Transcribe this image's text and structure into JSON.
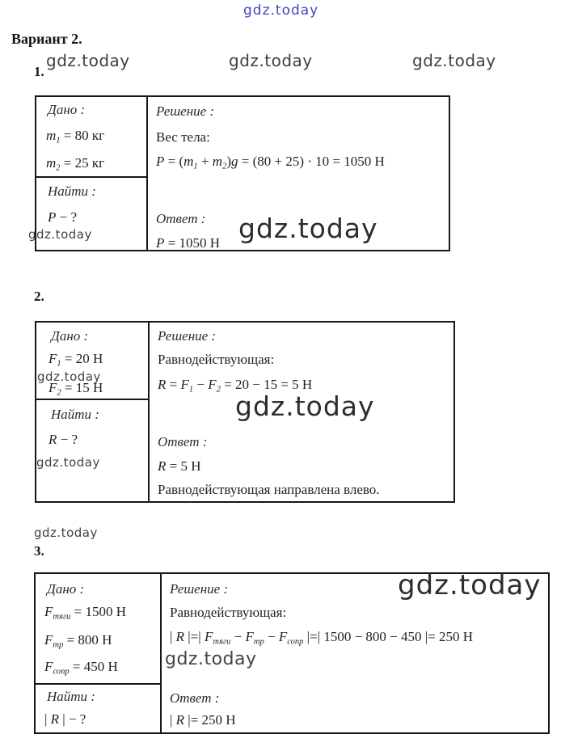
{
  "watermark": {
    "text": "gdz.today"
  },
  "header": {
    "variant": "Вариант 2."
  },
  "labels": {
    "given": "Дано :",
    "find": "Найти :",
    "solution": "Решение :",
    "answer": "Ответ :"
  },
  "problems": [
    {
      "number": "1.",
      "given": [
        [
          {
            "t": "m",
            "k": "v"
          },
          {
            "t": "1",
            "k": "s"
          },
          {
            "t": " = 80 кг",
            "k": "p"
          }
        ],
        [
          {
            "t": "m",
            "k": "v"
          },
          {
            "t": "2",
            "k": "s"
          },
          {
            "t": " = 25 кг",
            "k": "p"
          }
        ]
      ],
      "find": [
        [
          {
            "t": "P",
            "k": "v"
          },
          {
            "t": " − ?",
            "k": "p"
          }
        ]
      ],
      "solution_heading": "Вес тела:",
      "formula": [
        [
          {
            "t": "P",
            "k": "v"
          },
          {
            "t": " = (",
            "k": "p"
          },
          {
            "t": "m",
            "k": "v"
          },
          {
            "t": "1",
            "k": "s"
          },
          {
            "t": " + ",
            "k": "p"
          },
          {
            "t": "m",
            "k": "v"
          },
          {
            "t": "2",
            "k": "s"
          },
          {
            "t": ")",
            "k": "p"
          },
          {
            "t": "g",
            "k": "v"
          },
          {
            "t": " = (80 + 25) · 10 = 1050 Н",
            "k": "p"
          }
        ]
      ],
      "answer": [
        [
          {
            "t": "P",
            "k": "v"
          },
          {
            "t": " = 1050 Н",
            "k": "p"
          }
        ]
      ],
      "note": ""
    },
    {
      "number": "2.",
      "given": [
        [
          {
            "t": "F",
            "k": "v"
          },
          {
            "t": "1",
            "k": "s"
          },
          {
            "t": " = 20 Н",
            "k": "p"
          }
        ],
        [
          {
            "t": "F",
            "k": "v"
          },
          {
            "t": "2",
            "k": "s"
          },
          {
            "t": " = 15 Н",
            "k": "p"
          }
        ]
      ],
      "find": [
        [
          {
            "t": "R",
            "k": "v"
          },
          {
            "t": " − ?",
            "k": "p"
          }
        ]
      ],
      "solution_heading": "Равнодействующая:",
      "formula": [
        [
          {
            "t": "R",
            "k": "v"
          },
          {
            "t": " = ",
            "k": "p"
          },
          {
            "t": "F",
            "k": "v"
          },
          {
            "t": "1",
            "k": "s"
          },
          {
            "t": " − ",
            "k": "p"
          },
          {
            "t": "F",
            "k": "v"
          },
          {
            "t": "2",
            "k": "s"
          },
          {
            "t": " = 20 − 15 = 5 Н",
            "k": "p"
          }
        ]
      ],
      "answer": [
        [
          {
            "t": "R",
            "k": "v"
          },
          {
            "t": " = 5 Н",
            "k": "p"
          }
        ]
      ],
      "note": "Равнодействующая направлена влево."
    },
    {
      "number": "3.",
      "given": [
        [
          {
            "t": "F",
            "k": "v"
          },
          {
            "t": "тяги",
            "k": "s"
          },
          {
            "t": " = 1500 Н",
            "k": "p"
          }
        ],
        [
          {
            "t": "F",
            "k": "v"
          },
          {
            "t": "тр",
            "k": "s"
          },
          {
            "t": " = 800 Н",
            "k": "p"
          }
        ],
        [
          {
            "t": "F",
            "k": "v"
          },
          {
            "t": "сопр",
            "k": "s"
          },
          {
            "t": " = 450 Н",
            "k": "p"
          }
        ]
      ],
      "find": [
        [
          {
            "t": "| ",
            "k": "p"
          },
          {
            "t": "R",
            "k": "v"
          },
          {
            "t": " | − ?",
            "k": "p"
          }
        ]
      ],
      "solution_heading": "Равнодействующая:",
      "formula": [
        [
          {
            "t": "| ",
            "k": "p"
          },
          {
            "t": "R",
            "k": "v"
          },
          {
            "t": " |=| ",
            "k": "p"
          },
          {
            "t": "F",
            "k": "v"
          },
          {
            "t": "тяги",
            "k": "s"
          },
          {
            "t": " − ",
            "k": "p"
          },
          {
            "t": "F",
            "k": "v"
          },
          {
            "t": "тр",
            "k": "s"
          },
          {
            "t": " − ",
            "k": "p"
          },
          {
            "t": "F",
            "k": "v"
          },
          {
            "t": "сопр",
            "k": "s"
          },
          {
            "t": " |=| 1500 − 800 − 450 |= 250 Н",
            "k": "p"
          }
        ]
      ],
      "answer": [
        [
          {
            "t": "| ",
            "k": "p"
          },
          {
            "t": "R",
            "k": "v"
          },
          {
            "t": " |= 250 Н",
            "k": "p"
          }
        ]
      ],
      "note": ""
    }
  ]
}
